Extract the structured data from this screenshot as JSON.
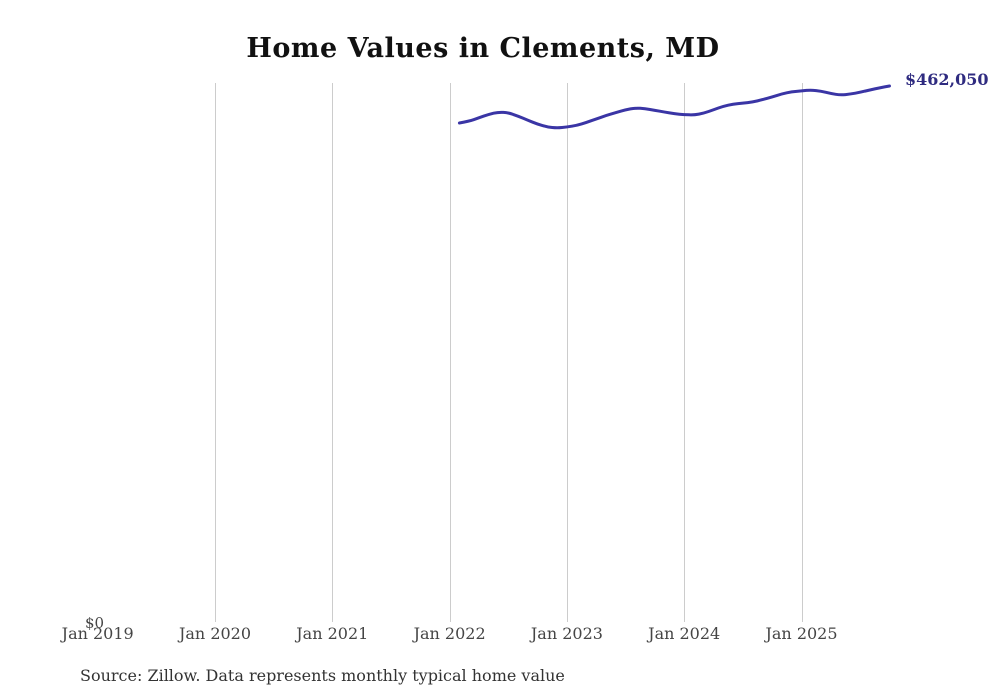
{
  "chart": {
    "title": "Home Values in Clements, MD",
    "latest_value_label": "$462,050",
    "y_zero_label": "$0",
    "source": "Source: Zillow. Data represents monthly typical home value",
    "line_color": "#3a35a5",
    "value_label_color": "#2f2b80",
    "grid_color": "#cccccc",
    "tick_label_color": "#454545"
  },
  "chart_data": {
    "type": "line",
    "title": "Home Values in Clements, MD",
    "xlabel": "",
    "ylabel": "",
    "unit": "USD",
    "ylim": [
      0,
      465000
    ],
    "grid": "vertical-only",
    "legend": "none",
    "annotation": "$462,050",
    "x_ticks": [
      {
        "label": "Jan 2019",
        "year": 2019,
        "gridline": false
      },
      {
        "label": "Jan 2020",
        "year": 2020,
        "gridline": true
      },
      {
        "label": "Jan 2021",
        "year": 2021,
        "gridline": true
      },
      {
        "label": "Jan 2022",
        "year": 2022,
        "gridline": true
      },
      {
        "label": "Jan 2023",
        "year": 2023,
        "gridline": true
      },
      {
        "label": "Jan 2024",
        "year": 2024,
        "gridline": true
      },
      {
        "label": "Jan 2025",
        "year": 2025,
        "gridline": true
      }
    ],
    "series": [
      {
        "name": "Typical home value",
        "x": [
          "2022-02",
          "2022-03",
          "2022-04",
          "2022-05",
          "2022-06",
          "2022-07",
          "2022-08",
          "2022-09",
          "2022-10",
          "2022-11",
          "2022-12",
          "2023-01",
          "2023-02",
          "2023-03",
          "2023-04",
          "2023-05",
          "2023-06",
          "2023-07",
          "2023-08",
          "2023-09",
          "2023-10",
          "2023-11",
          "2023-12",
          "2024-01",
          "2024-02",
          "2024-03",
          "2024-04",
          "2024-05",
          "2024-06",
          "2024-07",
          "2024-08",
          "2024-09",
          "2024-10",
          "2024-11",
          "2024-12",
          "2025-01",
          "2025-02",
          "2025-03",
          "2025-04",
          "2025-05",
          "2025-06",
          "2025-07",
          "2025-08",
          "2025-09",
          "2025-10"
        ],
        "values": [
          430000,
          431500,
          434500,
          437500,
          439500,
          439000,
          436000,
          432500,
          429000,
          426500,
          425700,
          426500,
          428000,
          430500,
          433500,
          436500,
          439000,
          441500,
          443000,
          442500,
          441000,
          439500,
          438000,
          437200,
          437000,
          438500,
          441500,
          444500,
          446400,
          447200,
          448200,
          450200,
          452600,
          455300,
          457000,
          457800,
          458600,
          457600,
          455600,
          454200,
          455000,
          456600,
          458600,
          460500,
          462050
        ]
      }
    ]
  }
}
